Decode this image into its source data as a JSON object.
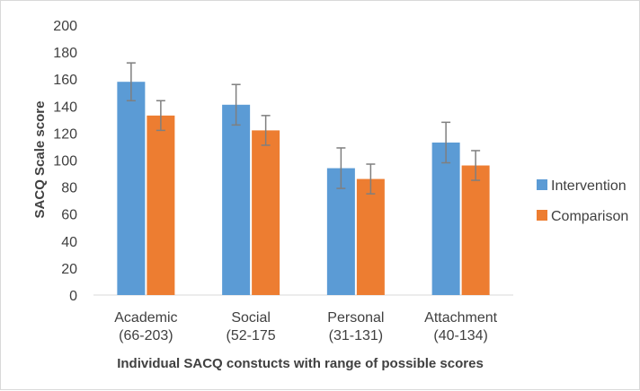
{
  "chart_data": {
    "type": "bar",
    "title": "",
    "xlabel": "Individual SACQ constucts with range of possible scores",
    "ylabel": "SACQ Scale score",
    "ylim": [
      0,
      200
    ],
    "yticks": [
      0,
      20,
      40,
      60,
      80,
      100,
      120,
      140,
      160,
      180,
      200
    ],
    "categories": [
      [
        "Academic",
        "(66-203)"
      ],
      [
        "Social",
        "(52-175"
      ],
      [
        "Personal",
        "(31-131)"
      ],
      [
        "Attachment",
        "(40-134)"
      ]
    ],
    "series": [
      {
        "name": "Intervention",
        "color": "#5b9bd5",
        "values": [
          158,
          141,
          94,
          113
        ],
        "error": [
          14,
          15,
          15,
          15
        ]
      },
      {
        "name": "Comparison",
        "color": "#ed7d31",
        "values": [
          133,
          122,
          86,
          96
        ],
        "error": [
          11,
          11,
          11,
          11
        ]
      }
    ],
    "grid": false,
    "legend_position": "right",
    "error_bars": true
  }
}
